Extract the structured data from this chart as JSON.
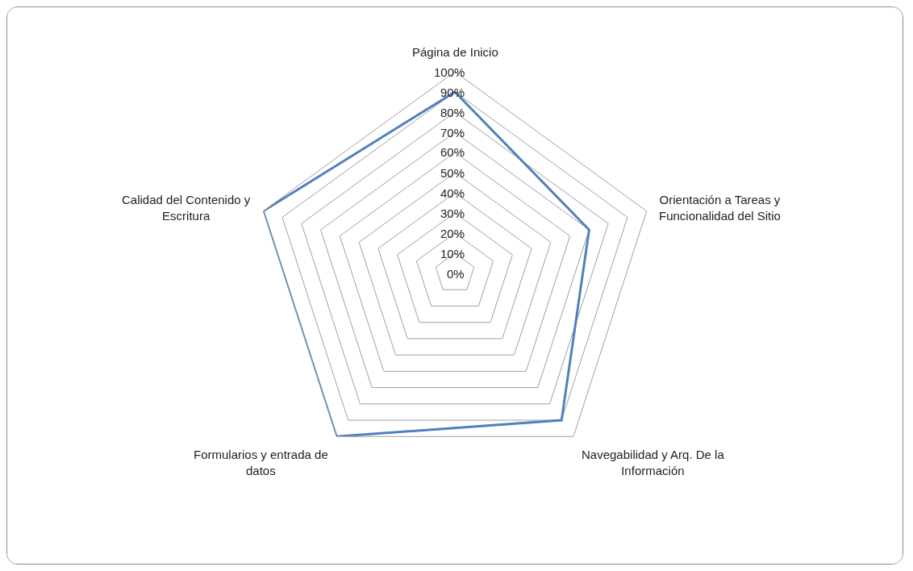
{
  "chart_data": {
    "type": "radar",
    "categories": [
      "Página de Inicio",
      "Orientación a Tareas y\nFuncionalidad del Sitio",
      "Navegabilidad y Arq. De la\nInformación",
      "Formularios y entrada de\ndatos",
      "Calidad del Contenido y\nEscritura"
    ],
    "series": [
      {
        "color": "#4f81bd",
        "values": [
          90,
          70,
          90,
          100,
          100
        ]
      }
    ],
    "ylim": [
      0,
      100
    ],
    "yticks": [
      {
        "value": 0,
        "label": "0%"
      },
      {
        "value": 10,
        "label": "10%"
      },
      {
        "value": 20,
        "label": "20%"
      },
      {
        "value": 30,
        "label": "30%"
      },
      {
        "value": 40,
        "label": "40%"
      },
      {
        "value": 50,
        "label": "50%"
      },
      {
        "value": 60,
        "label": "60%"
      },
      {
        "value": 70,
        "label": "70%"
      },
      {
        "value": 80,
        "label": "80%"
      },
      {
        "value": 90,
        "label": "90%"
      },
      {
        "value": 100,
        "label": "100%"
      }
    ],
    "grid": true,
    "marker": "none",
    "line_style": "solid"
  }
}
